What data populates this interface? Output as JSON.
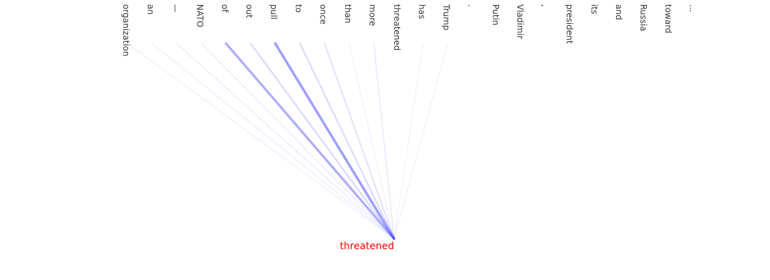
{
  "tokens": [
    "organization",
    "an",
    "—",
    "NATO",
    "of",
    "out",
    "pull",
    "to",
    "once",
    "than",
    "more",
    "threatened",
    "has",
    "Trump",
    ".",
    "Putin",
    "Vladimir",
    ",",
    "president",
    "its",
    "and",
    "Russia",
    "toward",
    "..."
  ],
  "highlighted_token": "NATO",
  "target_token": "threatened",
  "attention": [
    0.05,
    0.08,
    0.1,
    0.1,
    0.72,
    0.3,
    0.85,
    0.28,
    0.22,
    0.06,
    0.12,
    0.0,
    0.04,
    0.05,
    0.0,
    0.0,
    0.0,
    0.0,
    0.0,
    0.0,
    0.0,
    0.0,
    0.0,
    0.0
  ],
  "colors": {
    "token_text": "#333333",
    "highlight_text": "#008000",
    "target_text": "#ff0000",
    "edge": "#3333ff"
  }
}
